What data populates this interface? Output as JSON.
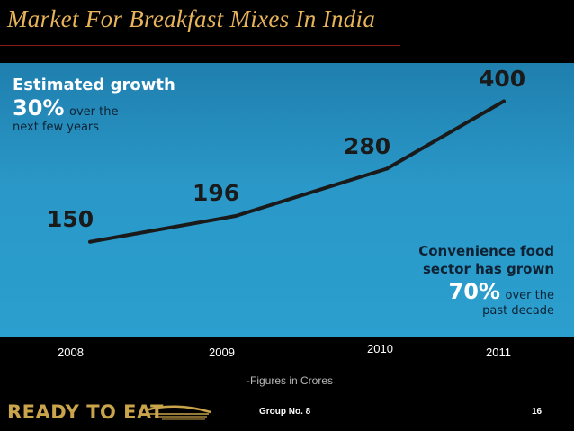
{
  "slide": {
    "title": "Market For Breakfast Mixes In India",
    "unit_note": "-Figures in Crores",
    "logo_text": "READY TO EAT",
    "group_label": "Group No. 8",
    "page_number": "16"
  },
  "notes": {
    "growth_line1": "Estimated growth",
    "growth_pct": "30%",
    "growth_suffix": "over the",
    "growth_line3": "next few years",
    "conv_line1": "Convenience food",
    "conv_line2": "sector has grown",
    "conv_pct": "70%",
    "conv_suffix": "over the",
    "conv_line4": "past decade"
  },
  "colors": {
    "title": "#e8b45a",
    "panel": "#2b9fcf",
    "line": "#1a1a1a"
  },
  "chart_data": {
    "type": "line",
    "categories": [
      "2008",
      "2009",
      "2010",
      "2011"
    ],
    "values": [
      150,
      196,
      280,
      400
    ],
    "value_labels": [
      "150",
      "196",
      "280",
      "400"
    ],
    "title": "",
    "xlabel": "",
    "ylabel": "",
    "ylim": [
      100,
      420
    ],
    "grid": false,
    "legend": "none"
  }
}
